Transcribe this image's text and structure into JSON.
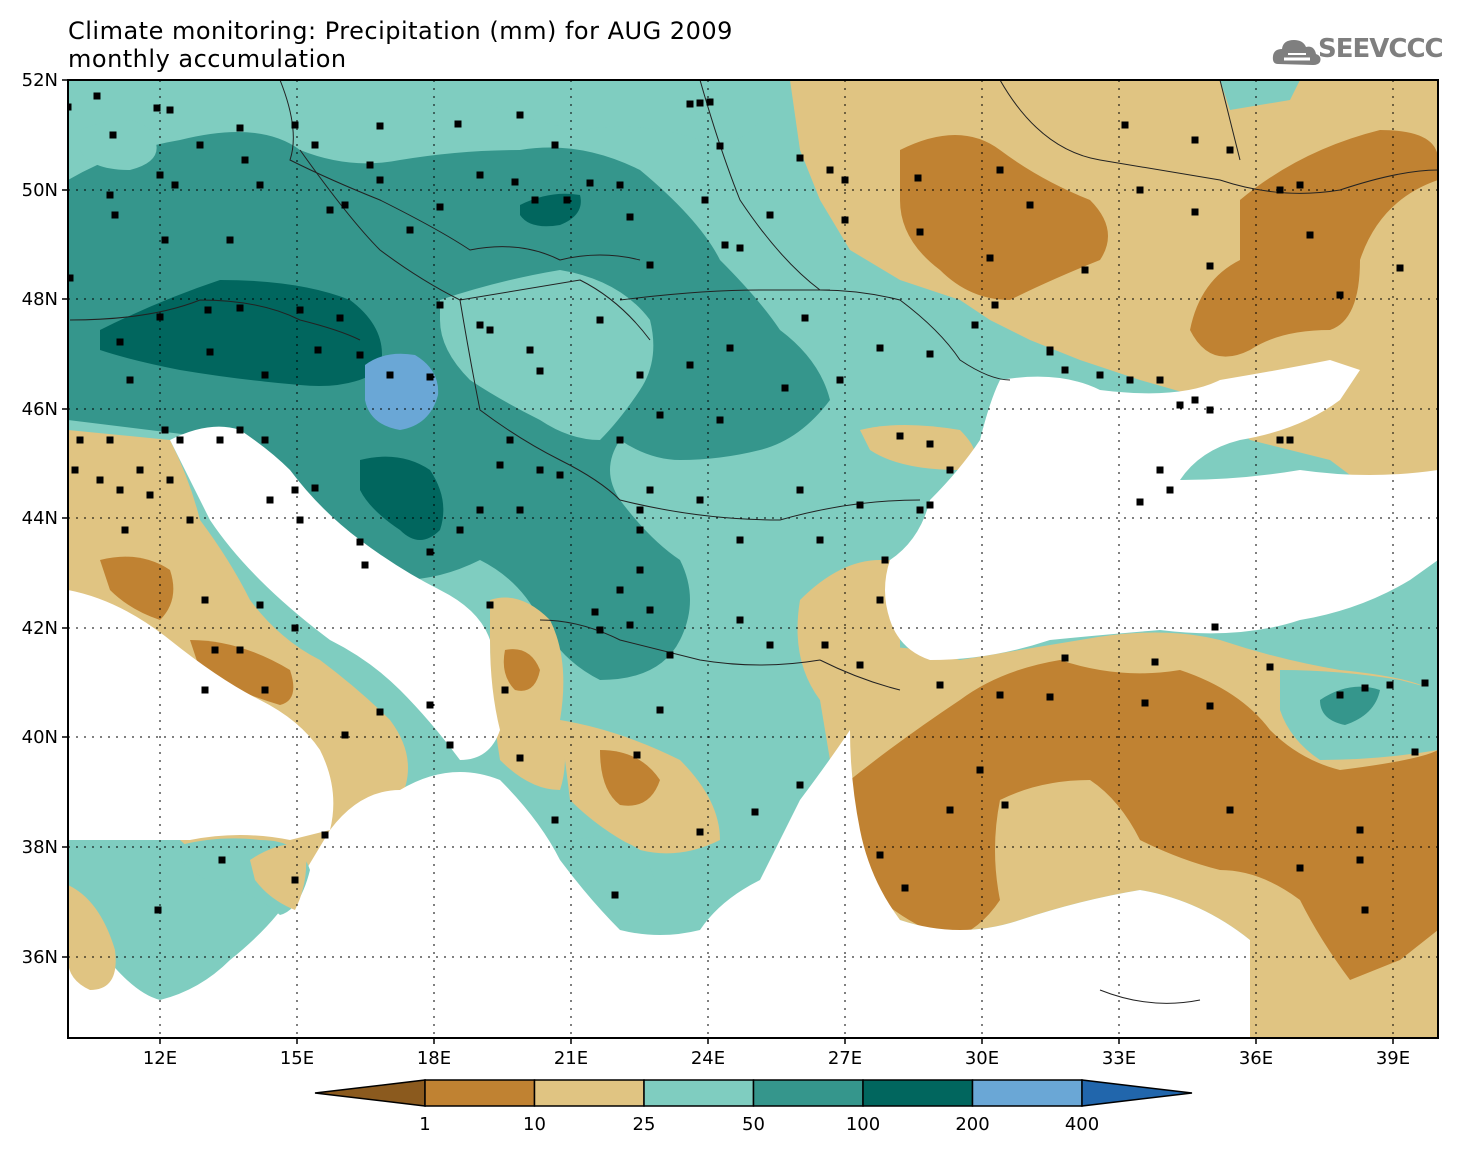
{
  "title": {
    "line1": "Climate monitoring: Precipitation (mm) for AUG 2009",
    "line2": "monthly accumulation"
  },
  "logo": {
    "text": "SEEVCCC",
    "icon": "cloud-icon",
    "color": "#7f7f7f"
  },
  "map": {
    "lat_labels": [
      "52N",
      "50N",
      "48N",
      "46N",
      "44N",
      "42N",
      "40N",
      "38N",
      "36N"
    ],
    "lon_labels": [
      "12E",
      "15E",
      "18E",
      "21E",
      "24E",
      "27E",
      "30E",
      "33E",
      "36E",
      "39E"
    ],
    "extent": {
      "lon": [
        10,
        40
      ],
      "lat": [
        34.5,
        52
      ]
    },
    "grid": "dotted"
  },
  "colorbar": {
    "labels": [
      "1",
      "10",
      "25",
      "50",
      "100",
      "200",
      "400"
    ],
    "colors": [
      "#8b5a1e",
      "#c08232",
      "#e0c482",
      "#7fcdc0",
      "#35968c",
      "#01665e",
      "#6aa7d6",
      "#2166ac"
    ]
  }
}
